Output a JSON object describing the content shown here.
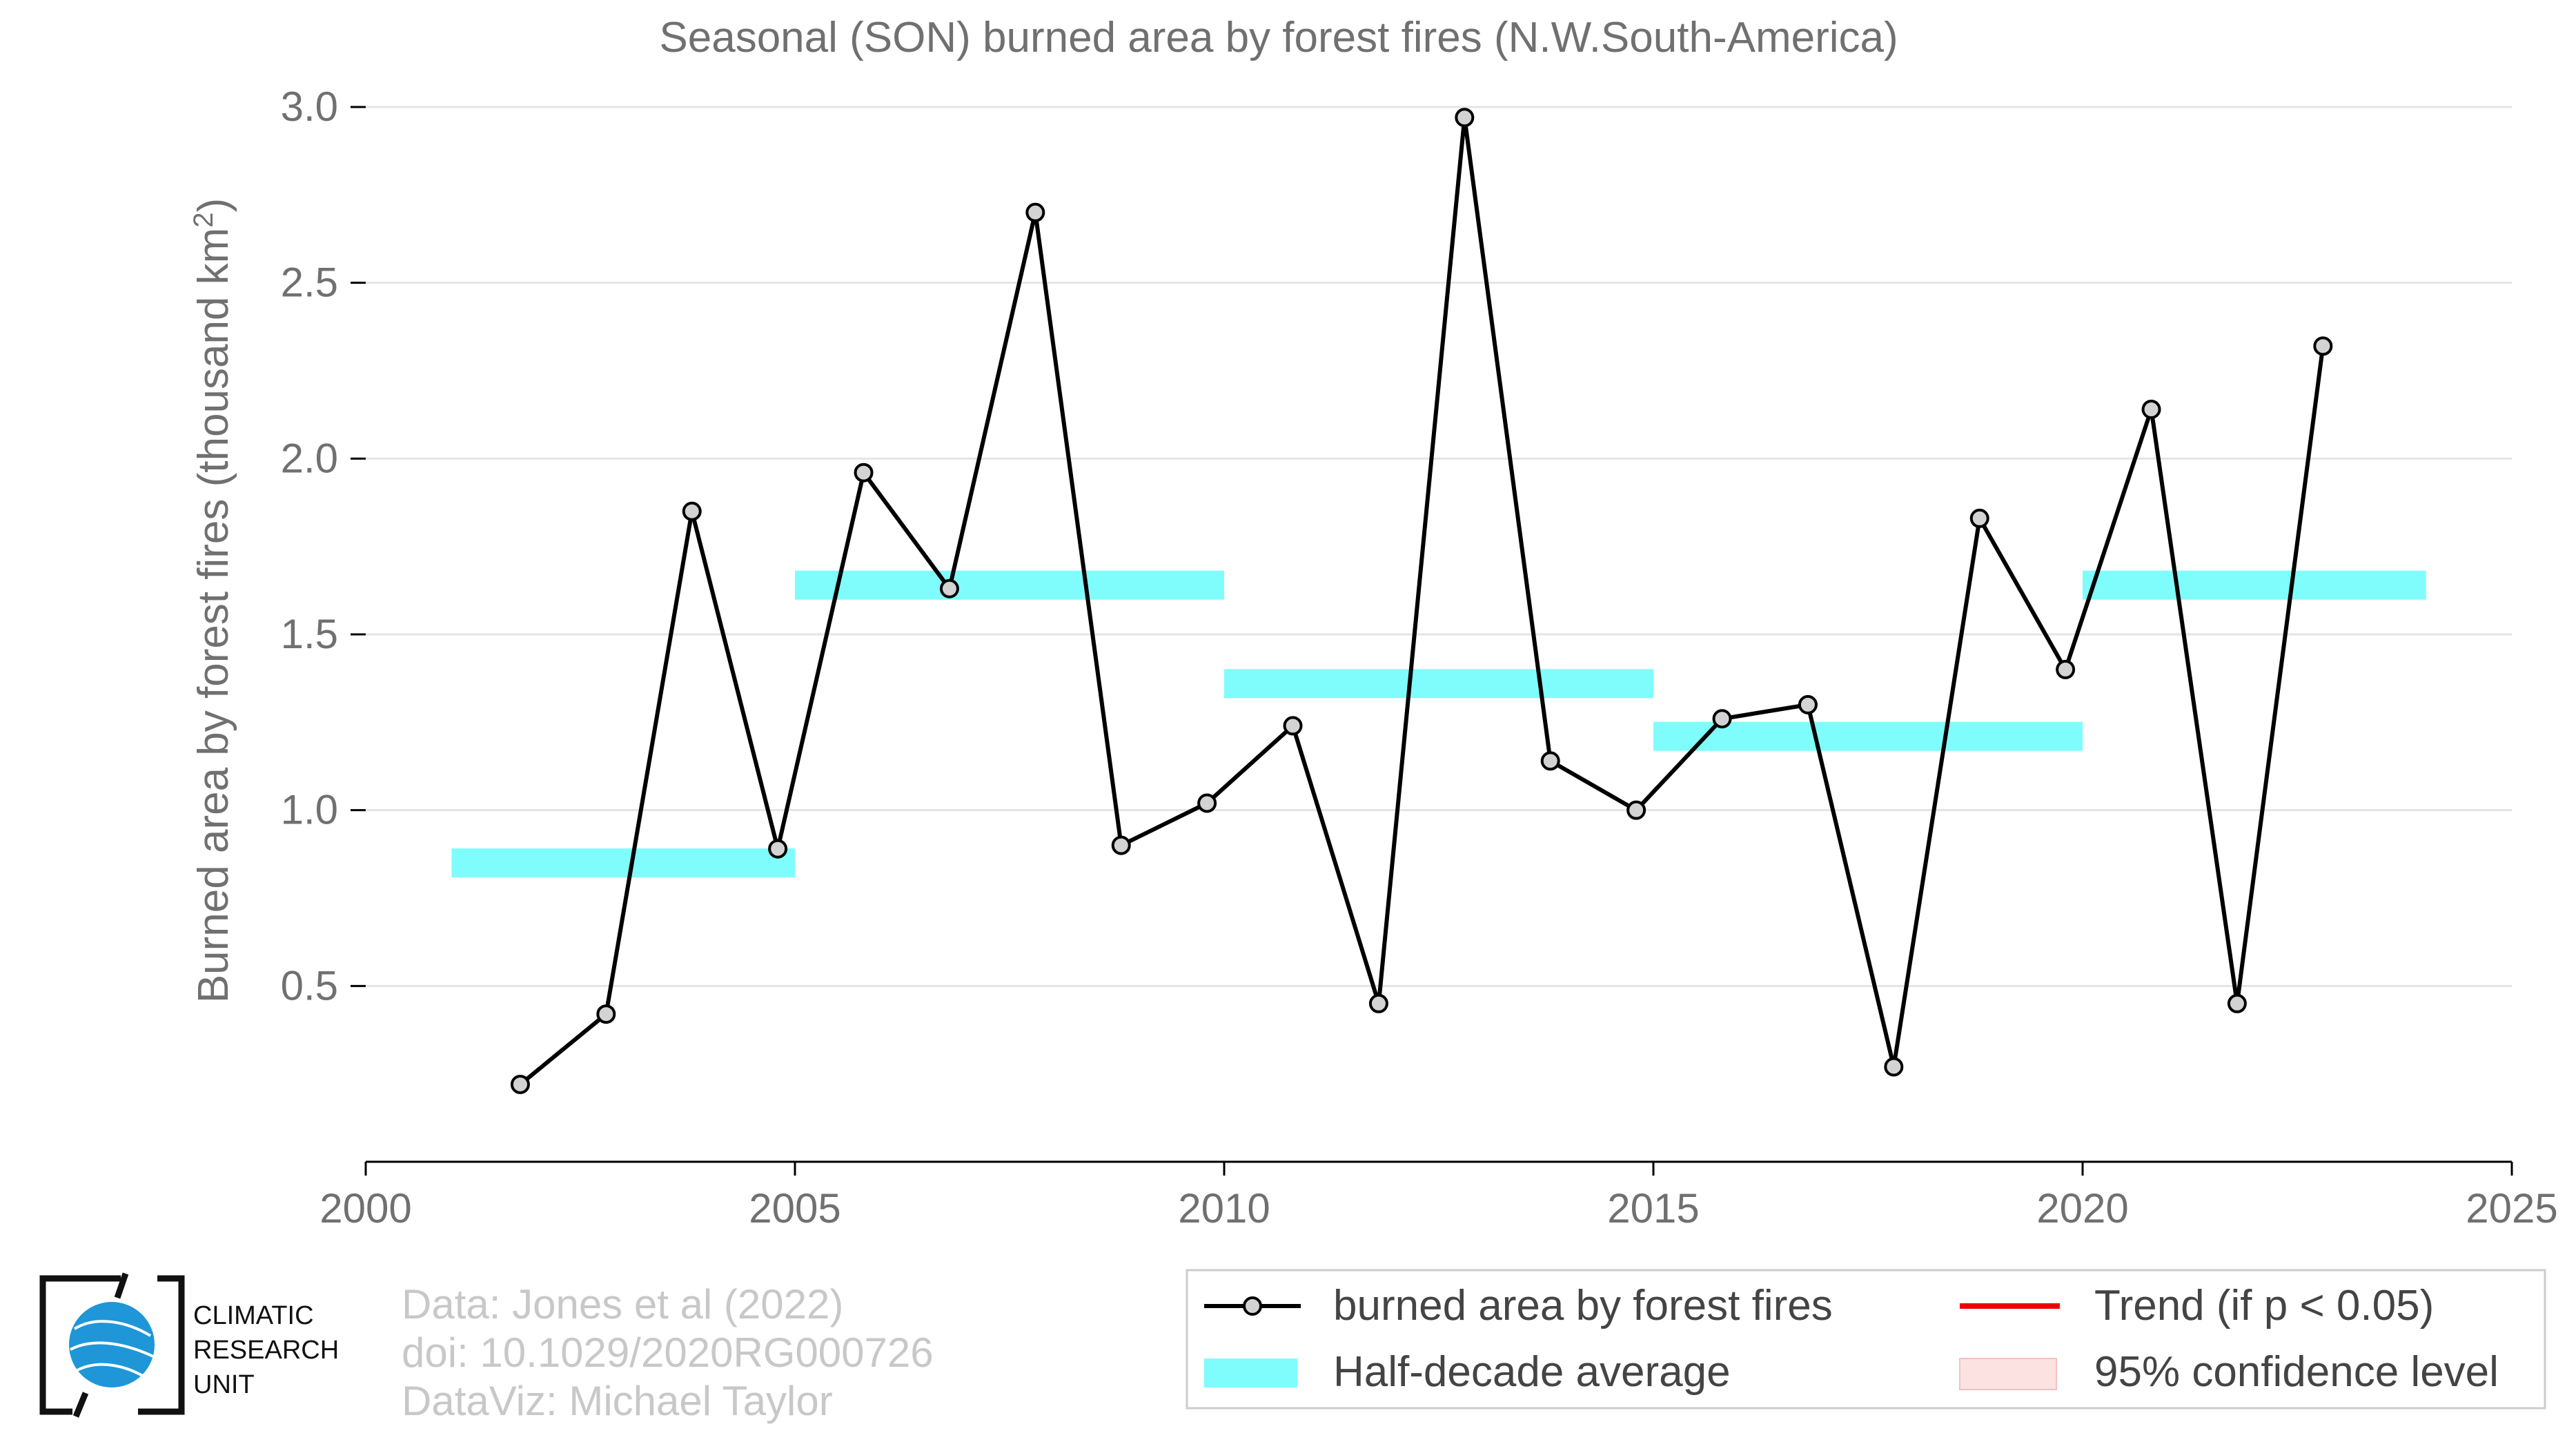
{
  "title": "Seasonal (SON) burned area by forest fires (N.W.South-America)",
  "ylabel_main": "Burned area by forest fires (thousand km",
  "ylabel_sup": "2",
  "ylabel_close": ")",
  "credits": [
    "Data: Jones et al (2022)",
    "doi: 10.1029/2020RG000726",
    "DataViz: Michael Taylor"
  ],
  "logo": {
    "lines": [
      "CLIMATIC",
      "RESEARCH",
      "UNIT"
    ]
  },
  "legend": {
    "series": "burned area by forest fires",
    "half_decade": "Half-decade average",
    "trend": "Trend (if p < 0.05)",
    "confidence": "95% confidence level"
  },
  "colors": {
    "line": "#000000",
    "marker_fill": "#d3d3d3",
    "half_decade": "#7ffdfd",
    "trend": "#ee0000",
    "confidence": "#fde2e2",
    "grid": "#e4e4e4",
    "text": "#707070"
  },
  "chart_data": {
    "type": "line",
    "title": "Seasonal (SON) burned area by forest fires (N.W.South-America)",
    "ylabel": "Burned area by forest fires (thousand km2)",
    "xlabel": "",
    "xlim": [
      2000,
      2025
    ],
    "ylim": [
      0,
      3.0
    ],
    "xticks": [
      2000,
      2005,
      2010,
      2015,
      2020,
      2025
    ],
    "yticks": [
      0.5,
      1.0,
      1.5,
      2.0,
      2.5,
      3.0
    ],
    "ytick_labels": [
      "0.5",
      "1.0",
      "1.5",
      "2.0",
      "2.5",
      "3.0"
    ],
    "grid": true,
    "legend_position": "bottom-right",
    "series": [
      {
        "name": "burned area by forest fires",
        "x": [
          2001.8,
          2002.8,
          2003.8,
          2004.8,
          2005.8,
          2006.8,
          2007.8,
          2008.8,
          2009.8,
          2010.8,
          2011.8,
          2012.8,
          2013.8,
          2014.8,
          2015.8,
          2016.8,
          2017.8,
          2018.8,
          2019.8,
          2020.8,
          2021.8,
          2022.8
        ],
        "y": [
          0.22,
          0.42,
          1.85,
          0.89,
          1.96,
          1.63,
          2.7,
          0.9,
          1.02,
          1.24,
          0.45,
          2.97,
          1.14,
          1.0,
          1.26,
          1.3,
          0.27,
          1.83,
          1.4,
          2.14,
          0.45,
          2.32
        ]
      }
    ],
    "half_decade_averages": [
      {
        "x_start": 2001,
        "x_end": 2005,
        "y": 0.85
      },
      {
        "x_start": 2005,
        "x_end": 2010,
        "y": 1.64
      },
      {
        "x_start": 2010,
        "x_end": 2015,
        "y": 1.36
      },
      {
        "x_start": 2015,
        "x_end": 2020,
        "y": 1.21
      },
      {
        "x_start": 2020,
        "x_end": 2024,
        "y": 1.64
      }
    ]
  }
}
